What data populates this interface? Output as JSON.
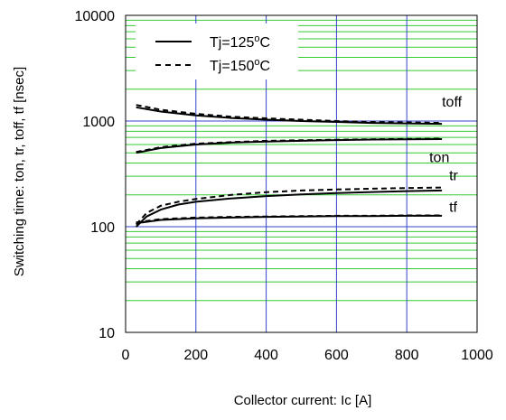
{
  "chart_data": {
    "type": "line",
    "title": "",
    "xlabel": "Collector current: Ic [A]",
    "ylabel": "Switching time: ton, tr, toff, tf [nsec]",
    "xlim": [
      0,
      1000
    ],
    "ylim": [
      10,
      10000
    ],
    "y_scale": "log",
    "x_ticks": [
      "0",
      "200",
      "400",
      "600",
      "800",
      "1000"
    ],
    "y_ticks": [
      "10",
      "100",
      "1000",
      "10000"
    ],
    "grid": true,
    "legend_position": "top-left",
    "colors": {
      "major_grid": "#3344cc",
      "minor_grid": "#33cc33",
      "curves": "#000000"
    },
    "legend": [
      {
        "label": "Tj=125",
        "superscript": "o",
        "unit": "C",
        "style": "solid"
      },
      {
        "label": "Tj=150",
        "superscript": "o",
        "unit": "C",
        "style": "dashed"
      }
    ],
    "curve_labels": [
      {
        "text": "toff",
        "series": "toff"
      },
      {
        "text": "ton",
        "series": "ton"
      },
      {
        "text": "tr",
        "series": "tr"
      },
      {
        "text": "tf",
        "series": "tf"
      }
    ],
    "series": [
      {
        "curve": "toff",
        "condition": "Tj=125°C",
        "style": "solid",
        "x": [
          30,
          100,
          200,
          300,
          400,
          500,
          600,
          700,
          800,
          900
        ],
        "y": [
          1350,
          1230,
          1130,
          1070,
          1030,
          1000,
          980,
          960,
          950,
          940
        ]
      },
      {
        "curve": "toff",
        "condition": "Tj=150°C",
        "style": "dashed",
        "x": [
          30,
          100,
          200,
          300,
          400,
          500,
          600,
          700,
          800,
          900
        ],
        "y": [
          1420,
          1280,
          1170,
          1100,
          1060,
          1030,
          1000,
          980,
          970,
          960
        ]
      },
      {
        "curve": "ton",
        "condition": "Tj=125°C",
        "style": "solid",
        "x": [
          30,
          100,
          200,
          300,
          400,
          500,
          600,
          700,
          800,
          900
        ],
        "y": [
          500,
          555,
          600,
          625,
          640,
          650,
          660,
          668,
          672,
          675
        ]
      },
      {
        "curve": "ton",
        "condition": "Tj=150°C",
        "style": "dashed",
        "x": [
          30,
          100,
          200,
          300,
          400,
          500,
          600,
          700,
          800,
          900
        ],
        "y": [
          510,
          565,
          610,
          632,
          648,
          658,
          665,
          672,
          676,
          680
        ]
      },
      {
        "curve": "tr",
        "condition": "Tj=125°C",
        "style": "solid",
        "x": [
          30,
          60,
          100,
          150,
          200,
          300,
          400,
          500,
          600,
          700,
          800,
          900
        ],
        "y": [
          100,
          125,
          145,
          162,
          172,
          185,
          195,
          202,
          208,
          213,
          217,
          220
        ]
      },
      {
        "curve": "tr",
        "condition": "Tj=150°C",
        "style": "dashed",
        "x": [
          30,
          60,
          100,
          150,
          200,
          300,
          400,
          500,
          600,
          700,
          800,
          900
        ],
        "y": [
          105,
          135,
          158,
          172,
          183,
          200,
          212,
          220,
          225,
          229,
          232,
          235
        ]
      },
      {
        "curve": "tf",
        "condition": "Tj=125°C",
        "style": "solid",
        "x": [
          30,
          100,
          200,
          300,
          400,
          500,
          600,
          700,
          800,
          900
        ],
        "y": [
          108,
          116,
          120,
          122,
          124,
          125,
          126,
          126,
          127,
          127
        ]
      },
      {
        "curve": "tf",
        "condition": "Tj=150°C",
        "style": "dashed",
        "x": [
          30,
          100,
          200,
          300,
          400,
          500,
          600,
          700,
          800,
          900
        ],
        "y": [
          110,
          118,
          122,
          124,
          125,
          126,
          127,
          127,
          128,
          128
        ]
      }
    ]
  }
}
